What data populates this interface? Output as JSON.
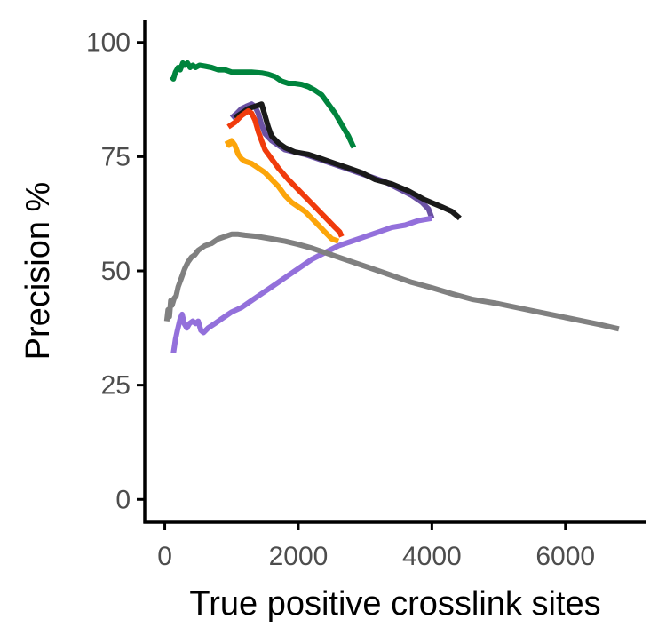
{
  "chart_data": {
    "type": "line",
    "title": "",
    "xlabel": "True positive crosslink sites",
    "ylabel": "Precision %",
    "xlim": [
      -300,
      7200
    ],
    "ylim": [
      -5,
      105
    ],
    "xticks": [
      0,
      2000,
      4000,
      6000
    ],
    "yticks": [
      0,
      25,
      50,
      75,
      100
    ],
    "grid": false,
    "legend": "none",
    "series": [
      {
        "color": "#00843d",
        "points": [
          [
            100,
            92.5
          ],
          [
            130,
            92
          ],
          [
            160,
            93.5
          ],
          [
            200,
            94.5
          ],
          [
            230,
            94
          ],
          [
            270,
            95.5
          ],
          [
            300,
            95
          ],
          [
            340,
            95.5
          ],
          [
            380,
            94.5
          ],
          [
            420,
            95
          ],
          [
            460,
            94.5
          ],
          [
            520,
            95
          ],
          [
            600,
            94.8
          ],
          [
            700,
            94.5
          ],
          [
            800,
            94
          ],
          [
            900,
            94
          ],
          [
            1000,
            93.5
          ],
          [
            1150,
            93.5
          ],
          [
            1300,
            93.5
          ],
          [
            1450,
            93.3
          ],
          [
            1550,
            93
          ],
          [
            1650,
            92.5
          ],
          [
            1750,
            91.5
          ],
          [
            1850,
            91
          ],
          [
            1950,
            91
          ],
          [
            2050,
            90.8
          ],
          [
            2150,
            90.3
          ],
          [
            2250,
            89.5
          ],
          [
            2350,
            88.5
          ],
          [
            2450,
            86.5
          ],
          [
            2550,
            84.5
          ],
          [
            2650,
            82
          ],
          [
            2750,
            79.5
          ],
          [
            2830,
            77
          ]
        ]
      },
      {
        "color": "#6a51a3",
        "points": [
          [
            1000,
            83.5
          ],
          [
            1080,
            84.5
          ],
          [
            1150,
            85.5
          ],
          [
            1220,
            86
          ],
          [
            1300,
            86.5
          ],
          [
            1350,
            86
          ],
          [
            1400,
            84.5
          ],
          [
            1450,
            82
          ],
          [
            1500,
            80
          ],
          [
            1600,
            78.5
          ],
          [
            1700,
            77.5
          ],
          [
            1800,
            76.5
          ],
          [
            1950,
            76
          ],
          [
            2100,
            75.5
          ],
          [
            2300,
            74.5
          ],
          [
            2500,
            73.5
          ],
          [
            2700,
            72.5
          ],
          [
            2900,
            71.5
          ],
          [
            3100,
            70.5
          ],
          [
            3300,
            69.5
          ],
          [
            3500,
            68
          ],
          [
            3700,
            66.5
          ],
          [
            3850,
            65
          ],
          [
            3950,
            63.5
          ],
          [
            4000,
            61.5
          ]
        ]
      },
      {
        "color": "#1a1a1a",
        "points": [
          [
            1050,
            83.5
          ],
          [
            1150,
            84.5
          ],
          [
            1250,
            85.5
          ],
          [
            1350,
            86
          ],
          [
            1450,
            86.5
          ],
          [
            1500,
            84
          ],
          [
            1550,
            81.5
          ],
          [
            1600,
            79.5
          ],
          [
            1700,
            78
          ],
          [
            1800,
            77
          ],
          [
            1950,
            76
          ],
          [
            2150,
            75.5
          ],
          [
            2350,
            74.5
          ],
          [
            2550,
            73.5
          ],
          [
            2750,
            72.5
          ],
          [
            2950,
            71.5
          ],
          [
            3150,
            70
          ],
          [
            3400,
            69
          ],
          [
            3650,
            67.5
          ],
          [
            3900,
            65.5
          ],
          [
            4150,
            64
          ],
          [
            4300,
            63
          ],
          [
            4420,
            61.5
          ]
        ]
      },
      {
        "color": "#f03b0c",
        "points": [
          [
            950,
            81.5
          ],
          [
            1050,
            82.5
          ],
          [
            1150,
            84
          ],
          [
            1250,
            85
          ],
          [
            1300,
            84.5
          ],
          [
            1350,
            83
          ],
          [
            1400,
            80.5
          ],
          [
            1450,
            78.5
          ],
          [
            1500,
            76.5
          ],
          [
            1600,
            74.5
          ],
          [
            1700,
            72.5
          ],
          [
            1850,
            70
          ],
          [
            1950,
            68.5
          ],
          [
            2050,
            67
          ],
          [
            2150,
            65.5
          ],
          [
            2250,
            64
          ],
          [
            2350,
            62.5
          ],
          [
            2450,
            61
          ],
          [
            2550,
            59.5
          ],
          [
            2620,
            58.5
          ],
          [
            2650,
            57.5
          ]
        ]
      },
      {
        "color": "#fca50a",
        "points": [
          [
            930,
            78.5
          ],
          [
            960,
            77.5
          ],
          [
            1000,
            78.5
          ],
          [
            1050,
            77.5
          ],
          [
            1100,
            75.5
          ],
          [
            1150,
            74.5
          ],
          [
            1200,
            74
          ],
          [
            1300,
            73.5
          ],
          [
            1400,
            72.5
          ],
          [
            1500,
            71.5
          ],
          [
            1600,
            70
          ],
          [
            1700,
            68.5
          ],
          [
            1800,
            66.5
          ],
          [
            1900,
            65
          ],
          [
            2000,
            64
          ],
          [
            2100,
            63
          ],
          [
            2200,
            61.5
          ],
          [
            2300,
            60
          ],
          [
            2400,
            58.5
          ],
          [
            2500,
            57
          ],
          [
            2600,
            56.5
          ]
        ]
      },
      {
        "color": "#9370db",
        "points": [
          [
            130,
            32
          ],
          [
            160,
            35
          ],
          [
            190,
            37
          ],
          [
            230,
            39.5
          ],
          [
            260,
            40.5
          ],
          [
            290,
            38.5
          ],
          [
            330,
            37.5
          ],
          [
            370,
            38.5
          ],
          [
            420,
            39
          ],
          [
            460,
            38.5
          ],
          [
            500,
            39
          ],
          [
            540,
            37
          ],
          [
            580,
            36.5
          ],
          [
            650,
            37.5
          ],
          [
            750,
            38.5
          ],
          [
            850,
            39.5
          ],
          [
            1000,
            41
          ],
          [
            1150,
            42
          ],
          [
            1300,
            43.5
          ],
          [
            1450,
            45
          ],
          [
            1600,
            46.5
          ],
          [
            1800,
            48.5
          ],
          [
            2000,
            50.5
          ],
          [
            2200,
            52.5
          ],
          [
            2400,
            54
          ],
          [
            2600,
            55.5
          ],
          [
            2800,
            56.5
          ],
          [
            3000,
            57.5
          ],
          [
            3200,
            58.5
          ],
          [
            3400,
            59.5
          ],
          [
            3600,
            60
          ],
          [
            3800,
            61
          ],
          [
            4000,
            61.5
          ]
        ]
      },
      {
        "color": "#808080",
        "points": [
          [
            30,
            39
          ],
          [
            50,
            41.5
          ],
          [
            70,
            40
          ],
          [
            90,
            43.5
          ],
          [
            110,
            42.5
          ],
          [
            140,
            44
          ],
          [
            170,
            44.5
          ],
          [
            200,
            46.5
          ],
          [
            250,
            48.5
          ],
          [
            300,
            50.5
          ],
          [
            350,
            52
          ],
          [
            400,
            53
          ],
          [
            450,
            53.5
          ],
          [
            500,
            54.5
          ],
          [
            550,
            55
          ],
          [
            600,
            55.5
          ],
          [
            700,
            56
          ],
          [
            800,
            57
          ],
          [
            900,
            57.5
          ],
          [
            1000,
            58
          ],
          [
            1100,
            58
          ],
          [
            1200,
            57.8
          ],
          [
            1400,
            57.5
          ],
          [
            1600,
            57
          ],
          [
            1800,
            56.5
          ],
          [
            2000,
            55.8
          ],
          [
            2200,
            55
          ],
          [
            2500,
            53.5
          ],
          [
            2800,
            52
          ],
          [
            3100,
            50.5
          ],
          [
            3400,
            49
          ],
          [
            3700,
            47.5
          ],
          [
            4000,
            46.3
          ],
          [
            4300,
            45
          ],
          [
            4600,
            43.8
          ],
          [
            5000,
            42.8
          ],
          [
            5500,
            41.3
          ],
          [
            6000,
            39.8
          ],
          [
            6500,
            38.3
          ],
          [
            6800,
            37.3
          ]
        ]
      }
    ]
  }
}
